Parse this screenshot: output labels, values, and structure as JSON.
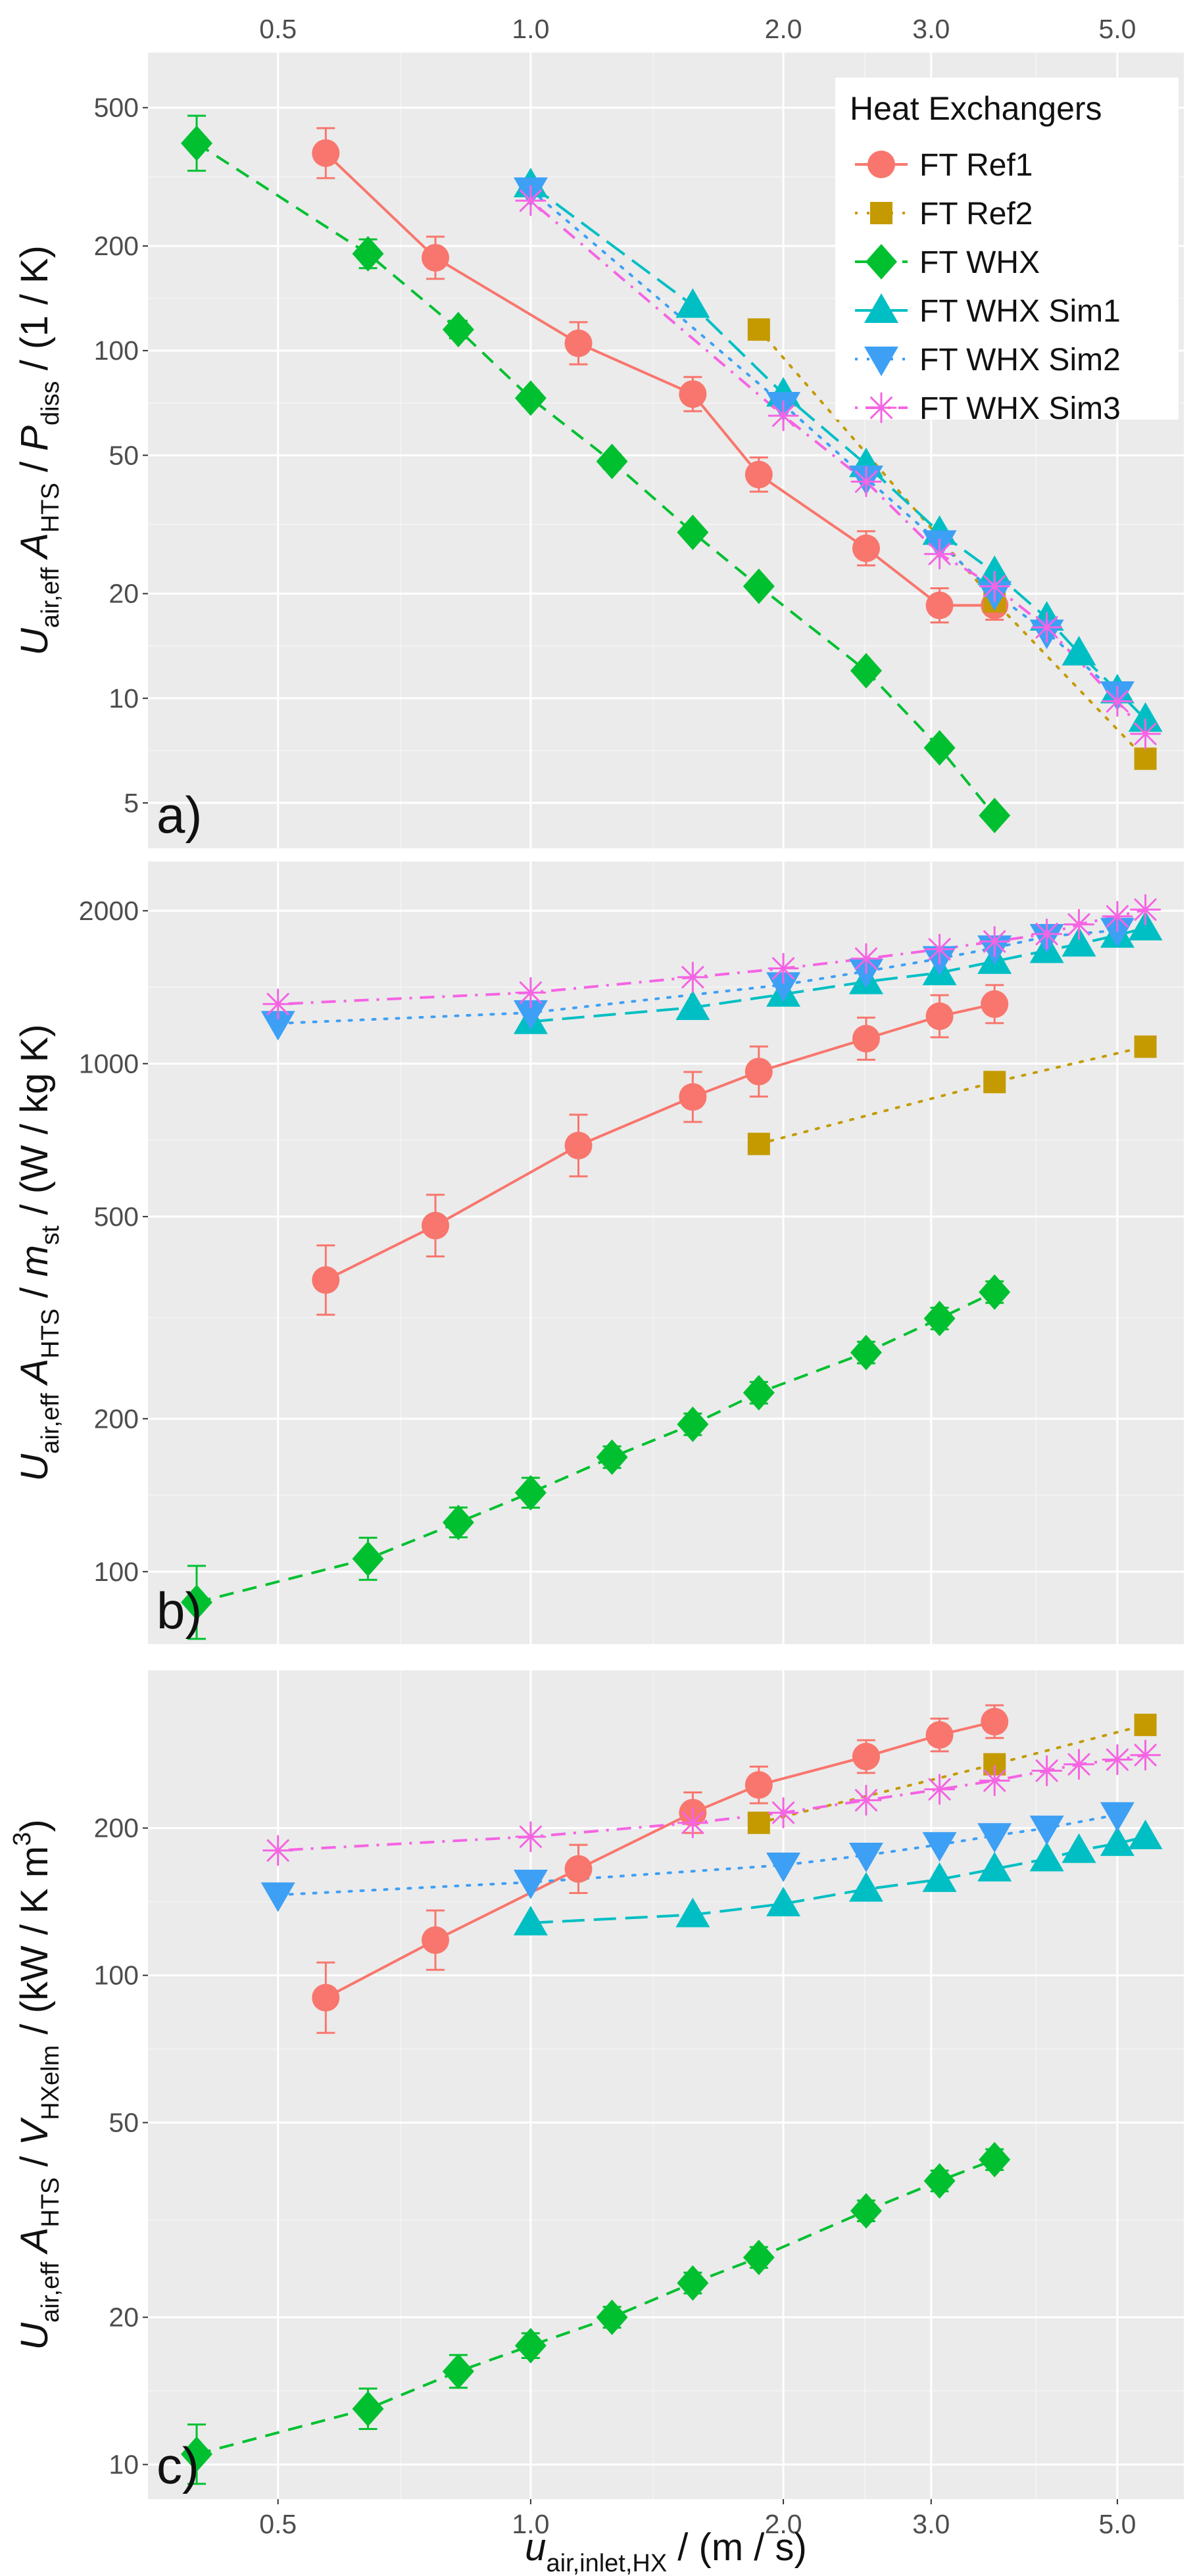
{
  "chart_data": [
    {
      "panel": "a)",
      "type": "line",
      "ylabel": {
        "parts": [
          {
            "t": "U"
          },
          {
            "t": "air,eff",
            "sub": true
          },
          {
            "t": " A"
          },
          {
            "t": "HTS",
            "sub": true
          },
          {
            "t": " / "
          },
          {
            "t": "P"
          },
          {
            "t": "diss",
            "sub": true
          },
          {
            "t": "  /  (1 / K)"
          }
        ],
        "italic": [
          0,
          2,
          5
        ]
      },
      "ylim": [
        3.7,
        720
      ],
      "yticks": [
        5,
        10,
        20,
        50,
        100,
        200,
        500
      ],
      "ytick_labels": [
        "5",
        "10",
        "20",
        "50",
        "100",
        "200",
        "500"
      ],
      "series": [
        {
          "name": "FT Ref1",
          "x": [
            0.57,
            0.77,
            1.14,
            1.56,
            1.87,
            2.51,
            3.07,
            3.57
          ],
          "y": [
            370,
            185,
            105,
            75,
            44,
            27,
            18.5,
            18.5
          ],
          "err": [
            0.18,
            0.15,
            0.15,
            0.12,
            0.12,
            0.12,
            0.12,
            0.1
          ]
        },
        {
          "name": "FT Ref2",
          "x": [
            1.87,
            3.57,
            5.4
          ],
          "y": [
            115,
            19,
            6.7
          ],
          "err": [
            0,
            0,
            0
          ]
        },
        {
          "name": "FT WHX",
          "x": [
            0.4,
            0.64,
            0.82,
            1.0,
            1.25,
            1.56,
            1.87,
            2.51,
            3.07,
            3.57
          ],
          "y": [
            395,
            190,
            115,
            73,
            48,
            30,
            21,
            12,
            7.2,
            4.6
          ],
          "err": [
            0.2,
            0.1,
            0.06,
            0.05,
            0.05,
            0.04,
            0.03,
            0.03,
            0.03,
            0.03
          ]
        },
        {
          "name": "FT WHX Sim1",
          "x": [
            1.0,
            1.56,
            2.0,
            2.51,
            3.07,
            3.57,
            4.12,
            4.5,
            5.0,
            5.4
          ],
          "y": [
            300,
            135,
            75,
            47,
            30,
            23,
            17,
            13.5,
            10.5,
            8.7
          ],
          "err": []
        },
        {
          "name": "FT WHX Sim2",
          "x": [
            1.0,
            2.0,
            2.51,
            3.07,
            3.57,
            4.12,
            5.0
          ],
          "y": [
            290,
            70,
            43,
            28,
            20,
            15.5,
            10.3
          ],
          "err": []
        },
        {
          "name": "FT WHX Sim3",
          "x": [
            1.0,
            2.0,
            2.51,
            3.07,
            3.57,
            4.12,
            5.0,
            5.4
          ],
          "y": [
            270,
            65,
            42,
            26,
            21,
            16,
            9.8,
            7.9
          ],
          "err": []
        }
      ]
    },
    {
      "panel": "b)",
      "type": "line",
      "ylabel": {
        "parts": [
          {
            "t": "U"
          },
          {
            "t": "air,eff",
            "sub": true
          },
          {
            "t": " A"
          },
          {
            "t": "HTS",
            "sub": true
          },
          {
            "t": " / "
          },
          {
            "t": "m"
          },
          {
            "t": "st",
            "sub": true
          },
          {
            "t": "  /  (W / kg K)"
          }
        ],
        "italic": [
          0,
          2,
          5
        ]
      },
      "ylim": [
        72,
        2500
      ],
      "yticks": [
        100,
        200,
        500,
        1000,
        2000
      ],
      "ytick_labels": [
        "100",
        "200",
        "500",
        "1000",
        "2000"
      ],
      "series": [
        {
          "name": "FT Ref1",
          "x": [
            0.57,
            0.77,
            1.14,
            1.56,
            1.87,
            2.51,
            3.07,
            3.57
          ],
          "y": [
            375,
            480,
            690,
            860,
            965,
            1120,
            1240,
            1310
          ],
          "err": [
            0.17,
            0.15,
            0.15,
            0.12,
            0.12,
            0.1,
            0.1,
            0.09
          ]
        },
        {
          "name": "FT Ref2",
          "x": [
            1.87,
            3.57,
            5.4
          ],
          "y": [
            695,
            920,
            1080
          ],
          "err": [
            0,
            0,
            0
          ]
        },
        {
          "name": "FT WHX",
          "x": [
            0.4,
            0.64,
            0.82,
            1.0,
            1.25,
            1.56,
            1.87,
            2.51,
            3.07,
            3.57
          ],
          "y": [
            87,
            106,
            125,
            143,
            168,
            195,
            225,
            270,
            315,
            355
          ],
          "err": [
            0.18,
            0.1,
            0.07,
            0.07,
            0.05,
            0.05,
            0.05,
            0.05,
            0.05,
            0.05
          ]
        },
        {
          "name": "FT WHX Sim1",
          "x": [
            1.0,
            1.56,
            2.0,
            2.51,
            3.07,
            3.57,
            4.12,
            4.5,
            5.0,
            5.4
          ],
          "y": [
            1210,
            1290,
            1370,
            1450,
            1510,
            1590,
            1670,
            1720,
            1790,
            1850
          ],
          "err": []
        },
        {
          "name": "FT WHX Sim2",
          "x": [
            0.5,
            1.0,
            2.0,
            2.51,
            3.07,
            3.57,
            4.12,
            5.0
          ],
          "y": [
            1200,
            1260,
            1430,
            1520,
            1610,
            1690,
            1780,
            1830
          ],
          "err": []
        },
        {
          "name": "FT WHX Sim3",
          "x": [
            0.5,
            1.0,
            1.56,
            2.0,
            2.51,
            3.07,
            3.57,
            4.12,
            4.5,
            5.0,
            5.4
          ],
          "y": [
            1310,
            1380,
            1480,
            1540,
            1610,
            1680,
            1740,
            1800,
            1880,
            1950,
            2010
          ],
          "err": []
        }
      ]
    },
    {
      "panel": "c)",
      "type": "line",
      "ylabel": {
        "parts": [
          {
            "t": "U"
          },
          {
            "t": "air,eff",
            "sub": true
          },
          {
            "t": " A"
          },
          {
            "t": "HTS",
            "sub": true
          },
          {
            "t": " / "
          },
          {
            "t": "V"
          },
          {
            "t": "HXelm",
            "sub": true
          },
          {
            "t": "  /  (kW / K m"
          },
          {
            "t": "3",
            "sup": true
          },
          {
            "t": ")"
          }
        ],
        "italic": [
          0,
          2,
          5
        ]
      },
      "ylim": [
        8.5,
        420
      ],
      "yticks": [
        10,
        20,
        50,
        100,
        200
      ],
      "ytick_labels": [
        "10",
        "20",
        "50",
        "100",
        "200"
      ],
      "series": [
        {
          "name": "FT Ref1",
          "x": [
            0.57,
            0.77,
            1.14,
            1.56,
            1.87,
            2.51,
            3.07,
            3.57
          ],
          "y": [
            90,
            118,
            165,
            215,
            245,
            280,
            310,
            330
          ],
          "err": [
            0.18,
            0.15,
            0.12,
            0.1,
            0.09,
            0.08,
            0.08,
            0.08
          ]
        },
        {
          "name": "FT Ref2",
          "x": [
            1.87,
            3.57,
            5.4
          ],
          "y": [
            205,
            270,
            325
          ],
          "err": [
            0,
            0,
            0
          ]
        },
        {
          "name": "FT WHX",
          "x": [
            0.4,
            0.64,
            0.82,
            1.0,
            1.25,
            1.56,
            1.87,
            2.51,
            3.07,
            3.57
          ],
          "y": [
            10.5,
            13,
            15.5,
            17.5,
            20,
            23.5,
            26.5,
            33,
            38,
            42
          ],
          "err": [
            0.15,
            0.1,
            0.08,
            0.06,
            0.05,
            0.05,
            0.05,
            0.05,
            0.05,
            0.05
          ]
        },
        {
          "name": "FT WHX Sim1",
          "x": [
            1.0,
            1.56,
            2.0,
            2.51,
            3.07,
            3.57,
            4.12,
            4.5,
            5.0,
            5.4
          ],
          "y": [
            128,
            133,
            140,
            150,
            157,
            165,
            173,
            180,
            186,
            192
          ],
          "err": []
        },
        {
          "name": "FT WHX Sim2",
          "x": [
            0.5,
            1.0,
            2.0,
            2.51,
            3.07,
            3.57,
            4.12,
            5.0
          ],
          "y": [
            146,
            155,
            168,
            176,
            185,
            193,
            200,
            213
          ],
          "err": []
        },
        {
          "name": "FT WHX Sim3",
          "x": [
            0.5,
            1.0,
            1.56,
            2.0,
            2.51,
            3.07,
            3.57,
            4.12,
            4.5,
            5.0,
            5.4
          ],
          "y": [
            180,
            192,
            205,
            215,
            228,
            240,
            250,
            262,
            270,
            276,
            282
          ],
          "err": []
        }
      ]
    }
  ],
  "shared": {
    "xscale": "log",
    "xlim": [
      0.35,
      6.0
    ],
    "xticks": [
      0.5,
      1.0,
      2.0,
      3.0,
      5.0
    ],
    "xtick_labels": [
      "0.5",
      "1.0",
      "2.0",
      "3.0",
      "5.0"
    ],
    "xlabel": {
      "parts": [
        {
          "t": "u"
        },
        {
          "t": "air,inlet,HX",
          "sub": true
        },
        {
          "t": "  /  (m / s)"
        }
      ],
      "italic": [
        0
      ]
    },
    "legend": {
      "title": "Heat Exchangers",
      "position": "top-right of panel a",
      "entries": [
        {
          "label": "FT Ref1",
          "color": "#F8766D",
          "marker": "circle",
          "line": "solid"
        },
        {
          "label": "FT Ref2",
          "color": "#C49A00",
          "marker": "square",
          "line": "dotted"
        },
        {
          "label": "FT WHX",
          "color": "#00C030",
          "marker": "diamond",
          "line": "dashed"
        },
        {
          "label": "FT WHX Sim1",
          "color": "#00BFC4",
          "marker": "triangle-up",
          "line": "longdash"
        },
        {
          "label": "FT WHX Sim2",
          "color": "#3DA0F5",
          "marker": "triangle-down",
          "line": "dotted"
        },
        {
          "label": "FT WHX Sim3",
          "color": "#F564E3",
          "marker": "asterisk",
          "line": "dotdash"
        }
      ]
    },
    "colors": {
      "panel_bg": "#EBEBEB",
      "grid_major": "#FFFFFF",
      "tick_text": "#4D4D4D"
    }
  }
}
